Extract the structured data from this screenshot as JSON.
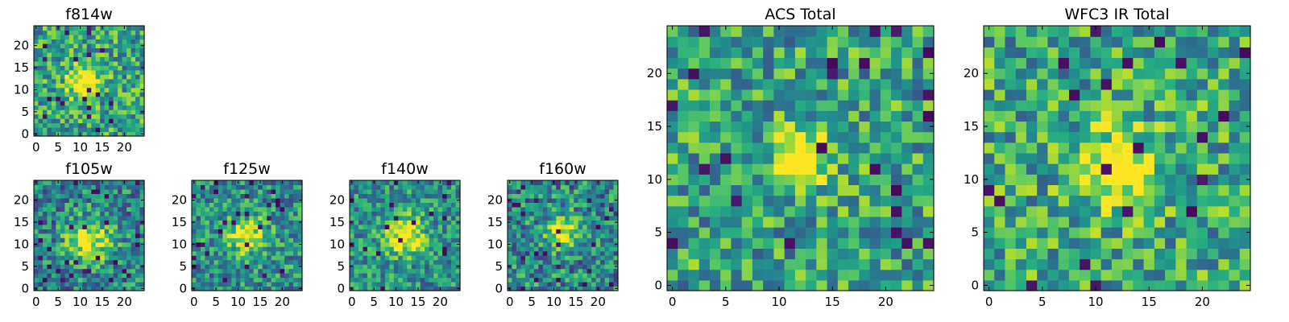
{
  "figure": {
    "background": "#ffffff"
  },
  "chart_data": [
    {
      "type": "heatmap",
      "title": "f814w",
      "grid_size": [
        25,
        25
      ],
      "colormap": "viridis",
      "value_range": [
        0,
        1
      ],
      "xticks": [
        0,
        5,
        10,
        15,
        20
      ],
      "yticks": [
        0,
        5,
        10,
        15,
        20
      ],
      "source_center": [
        11,
        12
      ],
      "source_radius": 2.5,
      "background_level": 0.58,
      "noise_amplitude": 0.3,
      "seed": 11
    },
    {
      "type": "heatmap",
      "title": "f105w",
      "grid_size": [
        25,
        25
      ],
      "colormap": "viridis",
      "value_range": [
        0,
        1
      ],
      "xticks": [
        0,
        5,
        10,
        15,
        20
      ],
      "yticks": [
        0,
        5,
        10,
        15,
        20
      ],
      "source_center": [
        12,
        11
      ],
      "source_radius": 3.5,
      "background_level": 0.45,
      "noise_amplitude": 0.28,
      "seed": 22
    },
    {
      "type": "heatmap",
      "title": "f125w",
      "grid_size": [
        25,
        25
      ],
      "colormap": "viridis",
      "value_range": [
        0,
        1
      ],
      "xticks": [
        0,
        5,
        10,
        15,
        20
      ],
      "yticks": [
        0,
        5,
        10,
        15,
        20
      ],
      "source_center": [
        12,
        12
      ],
      "source_radius": 2.8,
      "background_level": 0.5,
      "noise_amplitude": 0.28,
      "seed": 33
    },
    {
      "type": "heatmap",
      "title": "f140w",
      "grid_size": [
        25,
        25
      ],
      "colormap": "viridis",
      "value_range": [
        0,
        1
      ],
      "xticks": [
        0,
        5,
        10,
        15,
        20
      ],
      "yticks": [
        0,
        5,
        10,
        15,
        20
      ],
      "source_center": [
        12,
        12
      ],
      "source_radius": 3.2,
      "background_level": 0.5,
      "noise_amplitude": 0.26,
      "seed": 44
    },
    {
      "type": "heatmap",
      "title": "f160w",
      "grid_size": [
        25,
        25
      ],
      "colormap": "viridis",
      "value_range": [
        0,
        1
      ],
      "xticks": [
        0,
        5,
        10,
        15,
        20
      ],
      "yticks": [
        0,
        5,
        10,
        15,
        20
      ],
      "source_center": [
        12,
        13
      ],
      "source_radius": 2.7,
      "background_level": 0.47,
      "noise_amplitude": 0.3,
      "seed": 55
    },
    {
      "type": "heatmap",
      "title": "ACS Total",
      "grid_size": [
        25,
        25
      ],
      "colormap": "viridis",
      "value_range": [
        0,
        1
      ],
      "xticks": [
        0,
        5,
        10,
        15,
        20
      ],
      "yticks": [
        0,
        5,
        10,
        15,
        20
      ],
      "source_center": [
        12,
        12
      ],
      "source_radius": 2.0,
      "background_level": 0.58,
      "noise_amplitude": 0.3,
      "seed": 66
    },
    {
      "type": "heatmap",
      "title": "WFC3 IR Total",
      "grid_size": [
        25,
        25
      ],
      "colormap": "viridis",
      "value_range": [
        0,
        1
      ],
      "xticks": [
        0,
        5,
        10,
        15,
        20
      ],
      "yticks": [
        0,
        5,
        10,
        15,
        20
      ],
      "source_center": [
        12,
        11
      ],
      "source_radius": 2.5,
      "background_level": 0.6,
      "noise_amplitude": 0.3,
      "seed": 77
    }
  ]
}
